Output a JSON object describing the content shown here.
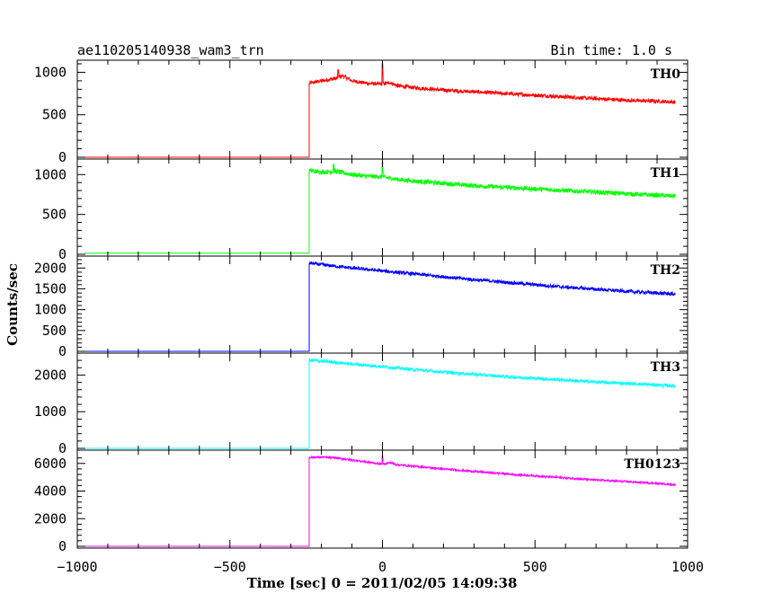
{
  "chart_data": {
    "type": "line",
    "title": "ae110205140938_wam3_trn",
    "subtitle": "Bin time: 1.0 s",
    "xlabel": "Time [sec] 0 = 2011/02/05 14:09:38",
    "ylabel": "Counts/sec",
    "xlim": [
      -1000,
      1000
    ],
    "x_ticks": [
      -1000,
      -500,
      0,
      500,
      1000
    ],
    "x_tick_labels": [
      "−1000",
      "−500",
      "0",
      "500",
      "1000"
    ],
    "data_x_range": [
      -975,
      960
    ],
    "trigger_time": -240,
    "grid": false,
    "series": [
      {
        "name": "TH0",
        "color": "#ff0000",
        "ylim": [
          0,
          1100
        ],
        "y_ticks": [
          0,
          500,
          1000
        ],
        "y_tick_labels": [
          "0",
          "500",
          "1000"
        ],
        "baseline": 0,
        "noise": 22,
        "x": [
          -240,
          -200,
          -150,
          -130,
          -100,
          -50,
          0,
          25,
          50,
          100,
          200,
          300,
          400,
          500,
          600,
          700,
          800,
          900,
          960
        ],
        "values": [
          870,
          900,
          930,
          960,
          900,
          870,
          860,
          880,
          840,
          820,
          790,
          770,
          750,
          730,
          710,
          690,
          670,
          660,
          650
        ],
        "spikes": [
          {
            "x": 0,
            "y": 1100
          },
          {
            "x": -145,
            "y": 1030
          }
        ]
      },
      {
        "name": "TH1",
        "color": "#00ff00",
        "ylim": [
          0,
          1150
        ],
        "y_ticks": [
          0,
          500,
          1000
        ],
        "y_tick_labels": [
          "0",
          "500",
          "1000"
        ],
        "baseline": 15,
        "noise": 28,
        "x": [
          -240,
          -200,
          -150,
          -100,
          -50,
          0,
          50,
          100,
          200,
          300,
          400,
          500,
          600,
          700,
          800,
          900,
          960
        ],
        "values": [
          1050,
          1030,
          1040,
          1000,
          980,
          970,
          940,
          920,
          890,
          860,
          840,
          820,
          800,
          780,
          760,
          740,
          730
        ],
        "spikes": [
          {
            "x": 0,
            "y": 1150
          },
          {
            "x": -160,
            "y": 1130
          }
        ]
      },
      {
        "name": "TH2",
        "color": "#0000ff",
        "ylim": [
          0,
          2200
        ],
        "y_ticks": [
          0,
          500,
          1000,
          1500,
          2000
        ],
        "y_tick_labels": [
          "0",
          "500",
          "1000",
          "1500",
          "2000"
        ],
        "baseline": 0,
        "noise": 40,
        "x": [
          -240,
          -200,
          -100,
          0,
          100,
          200,
          300,
          400,
          500,
          600,
          700,
          800,
          900,
          960
        ],
        "values": [
          2120,
          2080,
          2000,
          1930,
          1860,
          1790,
          1720,
          1660,
          1600,
          1540,
          1490,
          1440,
          1400,
          1370
        ],
        "spikes": []
      },
      {
        "name": "TH3",
        "color": "#00ffff",
        "ylim": [
          0,
          2500
        ],
        "y_ticks": [
          0,
          1000,
          2000
        ],
        "y_tick_labels": [
          "0",
          "1000",
          "2000"
        ],
        "baseline": 0,
        "noise": 45,
        "x": [
          -240,
          -200,
          -100,
          0,
          100,
          200,
          300,
          400,
          500,
          600,
          700,
          800,
          900,
          960
        ],
        "values": [
          2400,
          2380,
          2300,
          2230,
          2150,
          2080,
          2020,
          1960,
          1910,
          1860,
          1810,
          1770,
          1730,
          1700
        ],
        "spikes": []
      },
      {
        "name": "TH0123",
        "color": "#ff00ff",
        "ylim": [
          0,
          6700
        ],
        "y_ticks": [
          0,
          2000,
          4000,
          6000
        ],
        "y_tick_labels": [
          "0",
          "2000",
          "4000",
          "6000"
        ],
        "baseline": 0,
        "noise": 70,
        "x": [
          -240,
          -200,
          -150,
          -100,
          -50,
          0,
          25,
          50,
          100,
          200,
          300,
          400,
          500,
          600,
          700,
          800,
          900,
          960
        ],
        "values": [
          6450,
          6450,
          6400,
          6250,
          6100,
          5950,
          6050,
          5900,
          5800,
          5600,
          5420,
          5250,
          5100,
          4950,
          4800,
          4680,
          4560,
          4450
        ],
        "spikes": [
          {
            "x": 0,
            "y": 6550
          }
        ]
      }
    ]
  }
}
